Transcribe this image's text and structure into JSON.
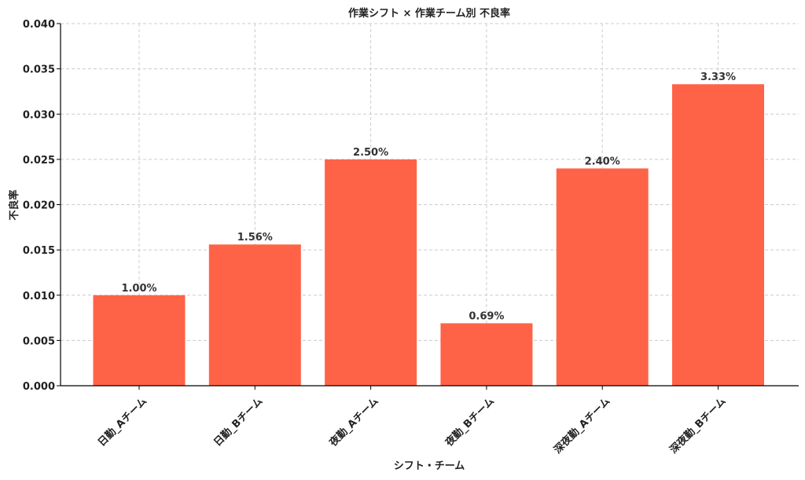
{
  "chart_data": {
    "type": "bar",
    "title": "作業シフト × 作業チーム別 不良率",
    "xlabel": "シフト・チーム",
    "ylabel": "不良率",
    "categories": [
      "日勤_Aチーム",
      "日勤_Bチーム",
      "夜勤_Aチーム",
      "夜勤_Bチーム",
      "深夜勤_Aチーム",
      "深夜勤_Bチーム"
    ],
    "values": [
      0.01,
      0.0156,
      0.025,
      0.0069,
      0.024,
      0.0333
    ],
    "data_labels": [
      "1.00%",
      "1.56%",
      "2.50%",
      "0.69%",
      "2.40%",
      "3.33%"
    ],
    "ylim": [
      0,
      0.04
    ],
    "yticks": [
      0.0,
      0.005,
      0.01,
      0.015,
      0.02,
      0.025,
      0.03,
      0.035,
      0.04
    ],
    "ytick_labels": [
      "0.000",
      "0.005",
      "0.010",
      "0.015",
      "0.020",
      "0.025",
      "0.030",
      "0.035",
      "0.040"
    ],
    "grid": true,
    "bar_color": "#ff6347"
  }
}
